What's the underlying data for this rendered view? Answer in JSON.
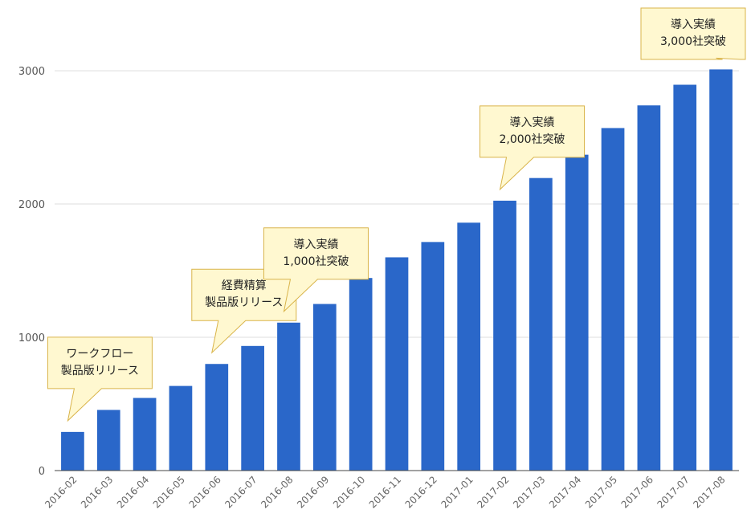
{
  "chart_data": {
    "type": "bar",
    "categories": [
      "2016-02",
      "2016-03",
      "2016-04",
      "2016-05",
      "2016-06",
      "2016-07",
      "2016-08",
      "2016-09",
      "2016-10",
      "2016-11",
      "2016-12",
      "2017-01",
      "2017-02",
      "2017-03",
      "2017-04",
      "2017-05",
      "2017-06",
      "2017-07",
      "2017-08"
    ],
    "values": [
      290,
      455,
      545,
      635,
      800,
      935,
      1110,
      1250,
      1445,
      1600,
      1715,
      1860,
      2025,
      2195,
      2370,
      2570,
      2740,
      2895,
      3010
    ],
    "y_ticks": [
      0,
      1000,
      2000,
      3000
    ],
    "ylim": [
      0,
      3350
    ],
    "grid": true,
    "bar_color": "#2a67c9",
    "annotations": [
      {
        "category": "2016-02",
        "lines": [
          "ワークフロー",
          "製品版リリース"
        ]
      },
      {
        "category": "2016-06",
        "lines": [
          "経費精算",
          "製品版リリース"
        ]
      },
      {
        "category": "2016-08",
        "lines": [
          "導入実績",
          "1,000社突破"
        ]
      },
      {
        "category": "2017-02",
        "lines": [
          "導入実績",
          "2,000社突破"
        ]
      },
      {
        "category": "2017-08",
        "lines": [
          "導入実績",
          "3,000社突破"
        ]
      }
    ]
  }
}
